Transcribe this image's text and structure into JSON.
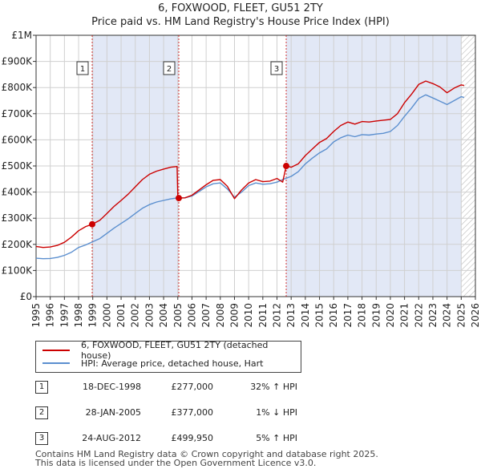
{
  "chart_data": {
    "type": "line",
    "title": "6, FOXWOOD, FLEET, GU51 2TY",
    "subtitle": "Price paid vs. HM Land Registry's House Price Index (HPI)",
    "xlabel": "",
    "ylabel": "",
    "xlim": [
      1995,
      2026
    ],
    "ylim": [
      0,
      1000000
    ],
    "x_ticks": [
      "1995",
      "1996",
      "1997",
      "1998",
      "1999",
      "2000",
      "2001",
      "2002",
      "2003",
      "2004",
      "2005",
      "2006",
      "2007",
      "2008",
      "2009",
      "2010",
      "2011",
      "2012",
      "2013",
      "2014",
      "2015",
      "2016",
      "2017",
      "2018",
      "2019",
      "2020",
      "2021",
      "2022",
      "2023",
      "2024",
      "2025",
      "2026"
    ],
    "y_ticks": [
      {
        "value": 0,
        "label": "£0"
      },
      {
        "value": 100000,
        "label": "£100K"
      },
      {
        "value": 200000,
        "label": "£200K"
      },
      {
        "value": 300000,
        "label": "£300K"
      },
      {
        "value": 400000,
        "label": "£400K"
      },
      {
        "value": 500000,
        "label": "£500K"
      },
      {
        "value": 600000,
        "label": "£600K"
      },
      {
        "value": 700000,
        "label": "£700K"
      },
      {
        "value": 800000,
        "label": "£800K"
      },
      {
        "value": 900000,
        "label": "£900K"
      },
      {
        "value": 1000000,
        "label": "£1M"
      }
    ],
    "grid": true,
    "shaded_regions": [
      {
        "from": 1998.96,
        "to": 2005.07
      },
      {
        "from": 2012.65,
        "to": 2025.0
      }
    ],
    "hatched_region": {
      "from": 2025.0,
      "to": 2026.0
    },
    "series": [
      {
        "name": "6, FOXWOOD, FLEET, GU51 2TY (detached house)",
        "color": "#cc0000",
        "points": [
          [
            1995.0,
            192000
          ],
          [
            1995.5,
            188000
          ],
          [
            1996.0,
            190000
          ],
          [
            1996.5,
            196000
          ],
          [
            1997.0,
            208000
          ],
          [
            1997.5,
            228000
          ],
          [
            1998.0,
            252000
          ],
          [
            1998.5,
            268000
          ],
          [
            1998.96,
            277000
          ],
          [
            1999.5,
            292000
          ],
          [
            2000.0,
            318000
          ],
          [
            2000.5,
            345000
          ],
          [
            2001.0,
            368000
          ],
          [
            2001.5,
            392000
          ],
          [
            2002.0,
            420000
          ],
          [
            2002.5,
            448000
          ],
          [
            2003.0,
            468000
          ],
          [
            2003.5,
            480000
          ],
          [
            2004.0,
            488000
          ],
          [
            2004.5,
            495000
          ],
          [
            2004.95,
            498000
          ],
          [
            2005.0,
            380000
          ],
          [
            2005.07,
            377000
          ],
          [
            2005.5,
            378000
          ],
          [
            2006.0,
            388000
          ],
          [
            2006.5,
            408000
          ],
          [
            2007.0,
            428000
          ],
          [
            2007.5,
            445000
          ],
          [
            2008.0,
            448000
          ],
          [
            2008.5,
            422000
          ],
          [
            2009.0,
            375000
          ],
          [
            2009.5,
            408000
          ],
          [
            2010.0,
            435000
          ],
          [
            2010.5,
            448000
          ],
          [
            2011.0,
            440000
          ],
          [
            2011.5,
            442000
          ],
          [
            2012.0,
            452000
          ],
          [
            2012.4,
            438000
          ],
          [
            2012.65,
            499950
          ],
          [
            2013.0,
            495000
          ],
          [
            2013.5,
            508000
          ],
          [
            2014.0,
            540000
          ],
          [
            2014.5,
            565000
          ],
          [
            2015.0,
            590000
          ],
          [
            2015.5,
            605000
          ],
          [
            2016.0,
            632000
          ],
          [
            2016.5,
            655000
          ],
          [
            2017.0,
            668000
          ],
          [
            2017.5,
            660000
          ],
          [
            2018.0,
            670000
          ],
          [
            2018.5,
            668000
          ],
          [
            2019.0,
            672000
          ],
          [
            2019.5,
            675000
          ],
          [
            2020.0,
            678000
          ],
          [
            2020.5,
            700000
          ],
          [
            2021.0,
            742000
          ],
          [
            2021.5,
            775000
          ],
          [
            2022.0,
            812000
          ],
          [
            2022.5,
            825000
          ],
          [
            2023.0,
            815000
          ],
          [
            2023.5,
            802000
          ],
          [
            2024.0,
            780000
          ],
          [
            2024.5,
            798000
          ],
          [
            2025.0,
            810000
          ],
          [
            2025.2,
            808000
          ]
        ]
      },
      {
        "name": "HPI: Average price, detached house, Hart",
        "color": "#5b8fcf",
        "points": [
          [
            1995.0,
            147000
          ],
          [
            1995.5,
            145000
          ],
          [
            1996.0,
            146000
          ],
          [
            1996.5,
            150000
          ],
          [
            1997.0,
            158000
          ],
          [
            1997.5,
            170000
          ],
          [
            1998.0,
            188000
          ],
          [
            1998.5,
            198000
          ],
          [
            1999.0,
            210000
          ],
          [
            1999.5,
            222000
          ],
          [
            2000.0,
            242000
          ],
          [
            2000.5,
            262000
          ],
          [
            2001.0,
            280000
          ],
          [
            2001.5,
            298000
          ],
          [
            2002.0,
            318000
          ],
          [
            2002.5,
            338000
          ],
          [
            2003.0,
            352000
          ],
          [
            2003.5,
            362000
          ],
          [
            2004.0,
            368000
          ],
          [
            2004.5,
            374000
          ],
          [
            2005.0,
            378000
          ],
          [
            2005.5,
            378000
          ],
          [
            2006.0,
            385000
          ],
          [
            2006.5,
            402000
          ],
          [
            2007.0,
            420000
          ],
          [
            2007.5,
            432000
          ],
          [
            2008.0,
            435000
          ],
          [
            2008.5,
            412000
          ],
          [
            2009.0,
            380000
          ],
          [
            2009.5,
            400000
          ],
          [
            2010.0,
            425000
          ],
          [
            2010.5,
            435000
          ],
          [
            2011.0,
            430000
          ],
          [
            2011.5,
            432000
          ],
          [
            2012.0,
            438000
          ],
          [
            2012.5,
            450000
          ],
          [
            2013.0,
            460000
          ],
          [
            2013.5,
            478000
          ],
          [
            2014.0,
            508000
          ],
          [
            2014.5,
            530000
          ],
          [
            2015.0,
            550000
          ],
          [
            2015.5,
            565000
          ],
          [
            2016.0,
            592000
          ],
          [
            2016.5,
            608000
          ],
          [
            2017.0,
            618000
          ],
          [
            2017.5,
            612000
          ],
          [
            2018.0,
            620000
          ],
          [
            2018.5,
            618000
          ],
          [
            2019.0,
            622000
          ],
          [
            2019.5,
            625000
          ],
          [
            2020.0,
            632000
          ],
          [
            2020.5,
            655000
          ],
          [
            2021.0,
            690000
          ],
          [
            2021.5,
            722000
          ],
          [
            2022.0,
            758000
          ],
          [
            2022.5,
            772000
          ],
          [
            2023.0,
            760000
          ],
          [
            2023.5,
            748000
          ],
          [
            2024.0,
            735000
          ],
          [
            2024.5,
            750000
          ],
          [
            2025.0,
            765000
          ],
          [
            2025.2,
            762000
          ]
        ]
      }
    ],
    "sales": [
      {
        "marker": "1",
        "x": 1998.96,
        "price": 277000
      },
      {
        "marker": "2",
        "x": 2005.07,
        "price": 377000
      },
      {
        "marker": "3",
        "x": 2012.65,
        "price": 499950
      }
    ]
  },
  "legend": [
    {
      "label": "6, FOXWOOD, FLEET, GU51 2TY (detached house)",
      "color": "#cc0000"
    },
    {
      "label": "HPI: Average price, detached house, Hart",
      "color": "#5b8fcf"
    }
  ],
  "sales_table": [
    {
      "marker": "1",
      "date": "18-DEC-1998",
      "price": "£277,000",
      "hpi": "32% ↑ HPI"
    },
    {
      "marker": "2",
      "date": "28-JAN-2005",
      "price": "£377,000",
      "hpi": "1% ↓ HPI"
    },
    {
      "marker": "3",
      "date": "24-AUG-2012",
      "price": "£499,950",
      "hpi": "5% ↑ HPI"
    }
  ],
  "footer": {
    "line1": "Contains HM Land Registry data © Crown copyright and database right 2025.",
    "line2": "This data is licensed under the Open Government Licence v3.0."
  }
}
